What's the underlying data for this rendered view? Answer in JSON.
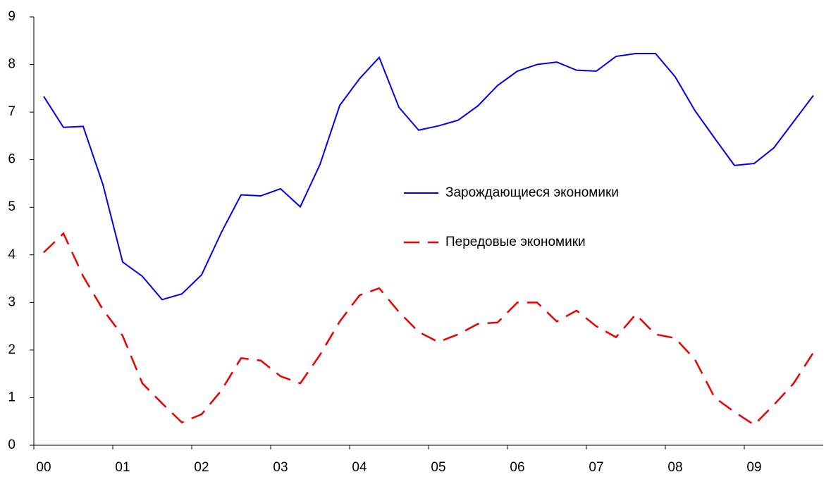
{
  "chart_data": {
    "type": "line",
    "x": [
      0.125,
      0.375,
      0.625,
      0.875,
      1.125,
      1.375,
      1.625,
      1.875,
      2.125,
      2.375,
      2.625,
      2.875,
      3.125,
      3.375,
      3.625,
      3.875,
      4.125,
      4.375,
      4.625,
      4.875,
      5.125,
      5.375,
      5.625,
      5.875,
      6.125,
      6.375,
      6.625,
      6.875,
      7.125,
      7.375,
      7.625,
      7.875,
      8.125,
      8.375,
      8.625,
      8.875,
      9.125,
      9.375,
      9.625,
      9.875
    ],
    "series": [
      {
        "name": "Зарождающиеся экономики",
        "color": "#0000ee",
        "dash": false,
        "values": [
          7.33,
          6.68,
          6.7,
          5.48,
          3.85,
          3.55,
          3.06,
          3.18,
          3.58,
          4.47,
          5.26,
          5.24,
          5.39,
          5.01,
          5.9,
          7.14,
          7.7,
          8.15,
          7.1,
          6.62,
          6.71,
          6.83,
          7.13,
          7.56,
          7.86,
          8.0,
          8.05,
          7.88,
          7.86,
          8.17,
          8.23,
          8.23,
          7.74,
          7.03,
          6.45,
          5.88,
          5.92,
          6.25,
          6.8,
          7.35
        ]
      },
      {
        "name": "Передовые экономики",
        "color": "#ee0000",
        "dash": true,
        "values": [
          4.05,
          4.45,
          3.55,
          2.85,
          2.3,
          1.3,
          0.88,
          0.48,
          0.65,
          1.15,
          1.83,
          1.78,
          1.45,
          1.3,
          1.9,
          2.6,
          3.15,
          3.3,
          2.8,
          2.38,
          2.17,
          2.33,
          2.55,
          2.58,
          3.0,
          3.0,
          2.6,
          2.83,
          2.5,
          2.27,
          2.75,
          2.33,
          2.25,
          1.8,
          1.0,
          0.7,
          0.43,
          0.85,
          1.3,
          1.95
        ]
      }
    ],
    "xlim": [
      0,
      10
    ],
    "xticks": [
      {
        "value": 0,
        "label": "00"
      },
      {
        "value": 1,
        "label": "01"
      },
      {
        "value": 2,
        "label": "02"
      },
      {
        "value": 3,
        "label": "03"
      },
      {
        "value": 4,
        "label": "04"
      },
      {
        "value": 5,
        "label": "05"
      },
      {
        "value": 6,
        "label": "06"
      },
      {
        "value": 7,
        "label": "07"
      },
      {
        "value": 8,
        "label": "08"
      },
      {
        "value": 9,
        "label": "09"
      }
    ],
    "ylim": [
      0,
      9
    ],
    "yticks": [
      0,
      1,
      2,
      3,
      4,
      5,
      6,
      7,
      8,
      9
    ],
    "grid": false
  }
}
